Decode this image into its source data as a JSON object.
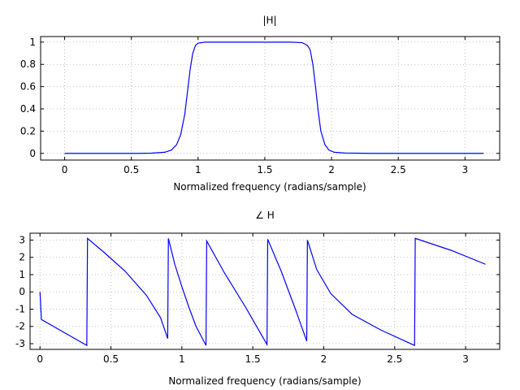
{
  "chart_data": [
    {
      "type": "line",
      "title": "|H|",
      "xlabel": "Normalized frequency (radians/sample)",
      "ylabel": "",
      "xlim": [
        -0.18,
        3.26
      ],
      "ylim": [
        -0.06,
        1.05
      ],
      "grid": true,
      "xticks": [
        0,
        0.5,
        1,
        1.5,
        2,
        2.5,
        3
      ],
      "xtick_labels": [
        "0",
        "0.5",
        "1",
        "1.5",
        "2",
        "2.5",
        "3"
      ],
      "yticks": [
        0,
        0.2,
        0.4,
        0.6,
        0.8,
        1
      ],
      "ytick_labels": [
        "0",
        "0.2",
        "0.4",
        "0.6",
        "0.8",
        "1"
      ],
      "color": "#0000ff",
      "series": [
        {
          "x": [
            0,
            0.55,
            0.65,
            0.75,
            0.8,
            0.84,
            0.87,
            0.9,
            0.92,
            0.94,
            0.96,
            0.98,
            1.0,
            1.05,
            1.1,
            1.7,
            1.78,
            1.82,
            1.84,
            1.86,
            1.88,
            1.9,
            1.92,
            1.95,
            1.98,
            2.02,
            2.1,
            2.3,
            2.5,
            3.14
          ],
          "y": [
            0.0,
            0.0,
            0.002,
            0.01,
            0.03,
            0.08,
            0.17,
            0.35,
            0.55,
            0.75,
            0.9,
            0.97,
            0.99,
            1.0,
            1.0,
            1.0,
            0.995,
            0.97,
            0.93,
            0.8,
            0.6,
            0.38,
            0.2,
            0.08,
            0.03,
            0.01,
            0.003,
            0.0,
            0.0,
            0.0
          ]
        }
      ]
    },
    {
      "type": "line",
      "title": "∠ H",
      "xlabel": "Normalized frequency (radians/sample)",
      "ylabel": "",
      "xlim": [
        -0.07,
        3.24
      ],
      "ylim": [
        -3.33,
        3.4
      ],
      "grid": true,
      "xticks": [
        0,
        0.5,
        1,
        1.5,
        2,
        2.5,
        3
      ],
      "xtick_labels": [
        "0",
        "0.5",
        "1",
        "1.5",
        "2",
        "2.5",
        "3"
      ],
      "yticks": [
        -3,
        -2,
        -1,
        0,
        1,
        2,
        3
      ],
      "ytick_labels": [
        "-3",
        "-2",
        "-1",
        "0",
        "1",
        "2",
        "3"
      ],
      "color": "#0000ff",
      "series": [
        {
          "x": [
            0,
            0.01,
            0.33,
            0.335,
            0.45,
            0.6,
            0.75,
            0.85,
            0.9,
            0.905,
            0.95,
            1.0,
            1.05,
            1.1,
            1.17,
            1.175,
            1.3,
            1.45,
            1.6,
            1.605,
            1.7,
            1.8,
            1.88,
            1.885,
            1.95,
            2.05,
            2.2,
            2.4,
            2.64,
            2.645,
            2.9,
            3.14
          ],
          "y": [
            0,
            -1.6,
            -3.1,
            3.1,
            2.3,
            1.2,
            -0.2,
            -1.5,
            -2.7,
            3.1,
            1.6,
            0.3,
            -0.9,
            -2.0,
            -3.1,
            2.95,
            1.1,
            -0.9,
            -3.05,
            3.05,
            1.2,
            -1.0,
            -2.85,
            3.0,
            1.3,
            -0.1,
            -1.3,
            -2.2,
            -3.1,
            3.1,
            2.4,
            1.6
          ]
        }
      ]
    }
  ]
}
